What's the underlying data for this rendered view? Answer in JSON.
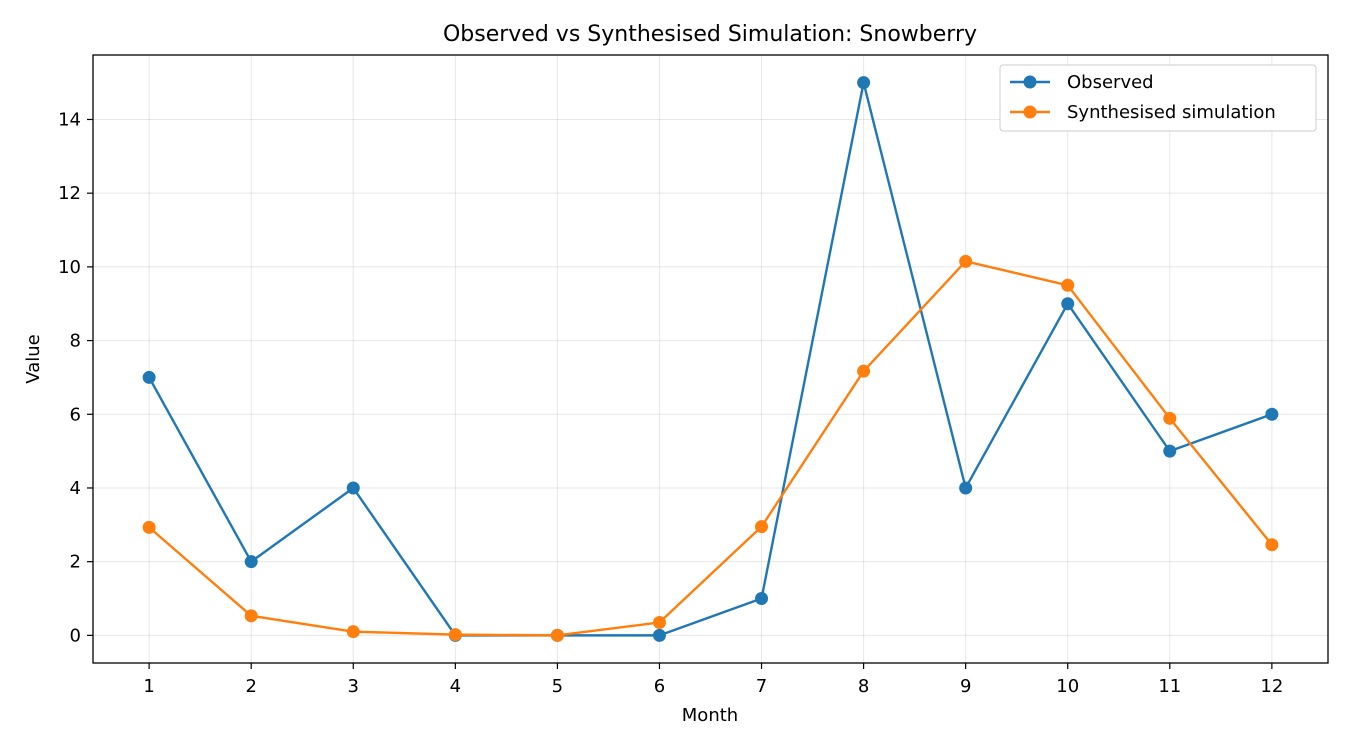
{
  "chart_data": {
    "type": "line",
    "title": "Observed vs Synthesised Simulation: Snowberry",
    "xlabel": "Month",
    "ylabel": "Value",
    "x": [
      1,
      2,
      3,
      4,
      5,
      6,
      7,
      8,
      9,
      10,
      11,
      12
    ],
    "xlim": [
      0.45,
      12.55
    ],
    "ylim": [
      -0.75,
      15.75
    ],
    "yticks": [
      0,
      2,
      4,
      6,
      8,
      10,
      12,
      14
    ],
    "grid": true,
    "legend_position": "top-right",
    "series": [
      {
        "name": "Observed",
        "color": "#1f77b4",
        "marker": "circle",
        "values": [
          7,
          2,
          4,
          0,
          0,
          0,
          1,
          15,
          4,
          9,
          5,
          6
        ]
      },
      {
        "name": "Synthesised simulation",
        "color": "#ff7f0e",
        "marker": "circle",
        "values": [
          2.93,
          0.53,
          0.1,
          0.02,
          0.0,
          0.35,
          2.95,
          7.17,
          10.15,
          9.5,
          5.89,
          2.46
        ]
      }
    ]
  }
}
